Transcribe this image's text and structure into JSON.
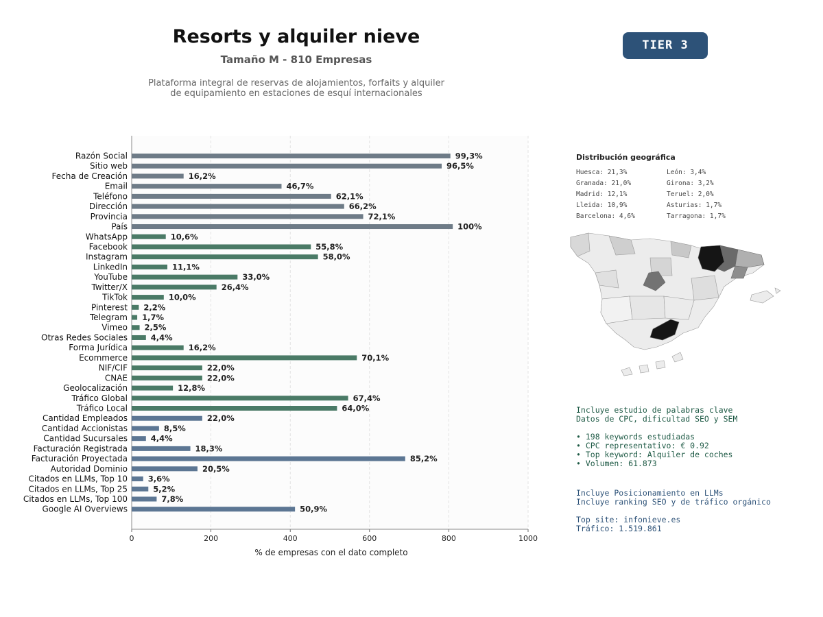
{
  "header": {
    "title": "Resorts y alquiler nieve",
    "subtitle": "Tamaño M - 810 Empresas",
    "description_line1": "Plataforma integral de reservas de alojamientos, forfaits y alquiler",
    "description_line2": "de equipamiento en estaciones de esquí internacionales",
    "tier": "TIER 3"
  },
  "colors": {
    "group_basic": "#6e7b87",
    "group_social": "#4a7a66",
    "group_business": "#5c7693",
    "tier_bg": "#2d5278",
    "kw_text": "#1e5a45",
    "llm_text": "#2d5278"
  },
  "chart_data": {
    "type": "bar",
    "orientation": "horizontal",
    "xlabel": "% de empresas con el dato completo",
    "xlim": [
      0,
      1000
    ],
    "xticks": [
      0,
      200,
      400,
      600,
      800,
      1000
    ],
    "grid": "vertical dashed",
    "categories": [
      "Razón Social",
      "Sitio web",
      "Fecha de Creación",
      "Email",
      "Teléfono",
      "Dirección",
      "Provincia",
      "País",
      "WhatsApp",
      "Facebook",
      "Instagram",
      "LinkedIn",
      "YouTube",
      "Twitter/X",
      "TikTok",
      "Pinterest",
      "Telegram",
      "Vimeo",
      "Otras Redes Sociales",
      "Forma Jurídica",
      "Ecommerce",
      "NIF/CIF",
      "CNAE",
      "Geolocalización",
      "Tráfico Global",
      "Tráfico Local",
      "Cantidad Empleados",
      "Cantidad Accionistas",
      "Cantidad Sucursales",
      "Facturación Registrada",
      "Facturación Proyectada",
      "Autoridad Dominio",
      "Citados en LLMs, Top 10",
      "Citados en LLMs, Top 25",
      "Citados en LLMs, Top 100",
      "Google AI Overviews"
    ],
    "values": [
      804,
      782,
      131,
      378,
      503,
      536,
      584,
      810,
      86,
      452,
      470,
      90,
      267,
      214,
      81,
      18,
      14,
      20,
      36,
      131,
      568,
      178,
      178,
      104,
      546,
      518,
      178,
      69,
      36,
      148,
      690,
      166,
      29,
      42,
      63,
      412
    ],
    "labels": [
      "99,3%",
      "96,5%",
      "16,2%",
      "46,7%",
      "62,1%",
      "66,2%",
      "72,1%",
      "100%",
      "10,6%",
      "55,8%",
      "58,0%",
      "11,1%",
      "33,0%",
      "26,4%",
      "10,0%",
      "2,2%",
      "1,7%",
      "2,5%",
      "4,4%",
      "16,2%",
      "70,1%",
      "22,0%",
      "22,0%",
      "12,8%",
      "67,4%",
      "64,0%",
      "22,0%",
      "8,5%",
      "4,4%",
      "18,3%",
      "85,2%",
      "20,5%",
      "3,6%",
      "5,2%",
      "7,8%",
      "50,9%"
    ],
    "groups": [
      "basic",
      "basic",
      "basic",
      "basic",
      "basic",
      "basic",
      "basic",
      "basic",
      "social",
      "social",
      "social",
      "social",
      "social",
      "social",
      "social",
      "social",
      "social",
      "social",
      "social",
      "social",
      "social",
      "social",
      "social",
      "social",
      "social",
      "social",
      "business",
      "business",
      "business",
      "business",
      "business",
      "business",
      "business",
      "business",
      "business",
      "business"
    ]
  },
  "geo": {
    "title": "Distribución geográfica",
    "left": [
      "Huesca: 21,3%",
      "Granada: 21,0%",
      "Madrid: 12,1%",
      "Lleida: 10,9%",
      "Barcelona: 4,6%"
    ],
    "right": [
      "León: 3,4%",
      "Girona: 3,2%",
      "Teruel: 2,0%",
      "Asturias: 1,7%",
      "Tarragona: 1,7%"
    ]
  },
  "keywords": {
    "line1": "Incluye estudio de palabras clave",
    "line2": "Datos de CPC, dificultad SEO y SEM",
    "bullet1": "• 198 keywords estudiadas",
    "bullet2": "• CPC representativo: € 0.92",
    "bullet3": "• Top keyword: Alquiler de coches",
    "bullet4": "• Volumen: 61.873"
  },
  "llm": {
    "line1": "Incluye Posicionamiento en LLMs",
    "line2": "Incluye ranking SEO y de tráfico orgánico",
    "line3": "Top site: infonieve.es",
    "line4": "Tráfico: 1.519.861"
  }
}
